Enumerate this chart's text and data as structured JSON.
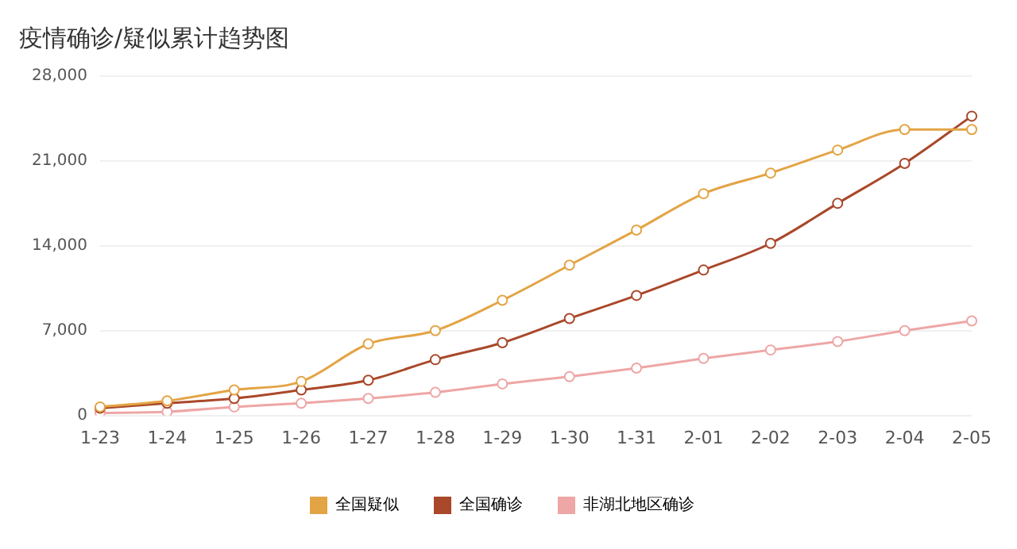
{
  "chart_data": {
    "type": "line",
    "title": "疫情确诊/疑似累计趋势图",
    "categories": [
      "1-23",
      "1-24",
      "1-25",
      "1-26",
      "1-27",
      "1-28",
      "1-29",
      "1-30",
      "1-31",
      "2-01",
      "2-02",
      "2-03",
      "2-04",
      "2-05"
    ],
    "series": [
      {
        "name": "全国疑似",
        "color": "#e3a445",
        "values": [
          700,
          1200,
          2100,
          2800,
          5900,
          7000,
          9500,
          12400,
          15300,
          18300,
          20000,
          21900,
          23600,
          23600
        ]
      },
      {
        "name": "全国确诊",
        "color": "#a9482a",
        "values": [
          600,
          1000,
          1400,
          2100,
          2900,
          4600,
          6000,
          8000,
          9900,
          12000,
          14200,
          17500,
          20800,
          24700
        ]
      },
      {
        "name": "非湖北地区确诊",
        "color": "#eea6a6",
        "values": [
          200,
          300,
          700,
          1000,
          1400,
          1900,
          2600,
          3200,
          3900,
          4700,
          5400,
          6100,
          7000,
          7800
        ]
      }
    ],
    "ylim": [
      0,
      28000
    ],
    "yticks": [
      0,
      {
        "value": 7000,
        "label": "7,000"
      },
      {
        "value": 14000,
        "label": "14,000"
      },
      {
        "value": 21000,
        "label": "21,000"
      },
      {
        "value": 28000,
        "label": "28,000"
      }
    ],
    "grid": "y",
    "legend": "bottom",
    "marker": "circle",
    "line_style": "solid"
  }
}
